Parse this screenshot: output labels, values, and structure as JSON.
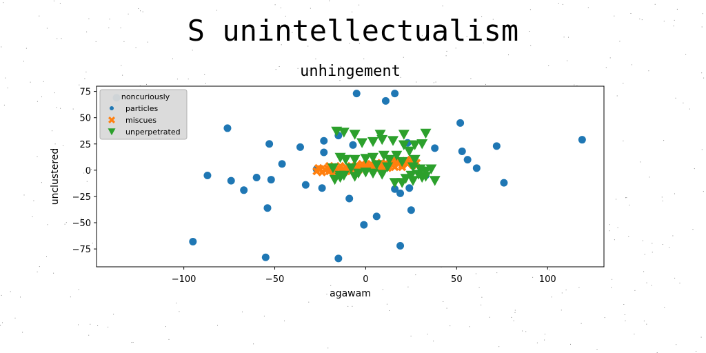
{
  "suptitle": "S unintellectualism",
  "chart_data": {
    "type": "scatter",
    "title": "unhingement",
    "xlabel": "agawam",
    "ylabel": "unclustered",
    "xlim": [
      -148,
      131
    ],
    "ylim": [
      -92,
      80
    ],
    "xticks": [
      -100,
      -50,
      0,
      50,
      100
    ],
    "xtick_labels": [
      "−100",
      "−50",
      "0",
      "50",
      "100"
    ],
    "yticks": [
      -75,
      -50,
      -25,
      0,
      25,
      50,
      75
    ],
    "ytick_labels": [
      "−75",
      "−50",
      "−25",
      "0",
      "25",
      "50",
      "75"
    ],
    "grid": false,
    "legend": {
      "title": "noncuriously",
      "placement": "top-left"
    },
    "series": [
      {
        "name": "particles",
        "marker": "circle",
        "color": "#1f77b4",
        "points": [
          [
            -137,
            69
          ],
          [
            -5,
            73
          ],
          [
            16,
            73
          ],
          [
            11,
            66
          ],
          [
            -76,
            40
          ],
          [
            52,
            45
          ],
          [
            119,
            29
          ],
          [
            -53,
            25
          ],
          [
            -36,
            22
          ],
          [
            -23,
            28
          ],
          [
            -23,
            17
          ],
          [
            -15,
            33
          ],
          [
            -7,
            24
          ],
          [
            23,
            26
          ],
          [
            38,
            21
          ],
          [
            53,
            18
          ],
          [
            56,
            10
          ],
          [
            72,
            23
          ],
          [
            61,
            2
          ],
          [
            -46,
            6
          ],
          [
            -87,
            -5
          ],
          [
            -74,
            -10
          ],
          [
            -60,
            -7
          ],
          [
            -52,
            -9
          ],
          [
            -67,
            -19
          ],
          [
            -33,
            -14
          ],
          [
            -24,
            -17
          ],
          [
            -27,
            1
          ],
          [
            -9,
            -27
          ],
          [
            16,
            -18
          ],
          [
            19,
            -22
          ],
          [
            24,
            -17
          ],
          [
            33,
            -5
          ],
          [
            76,
            -12
          ],
          [
            -54,
            -36
          ],
          [
            25,
            -38
          ],
          [
            6,
            -44
          ],
          [
            -1,
            -52
          ],
          [
            -95,
            -68
          ],
          [
            19,
            -72
          ],
          [
            -55,
            -83
          ],
          [
            -15,
            -84
          ]
        ]
      },
      {
        "name": "miscues",
        "marker": "x",
        "color": "#ff7f0e",
        "points": [
          [
            -27,
            -1
          ],
          [
            -25,
            1
          ],
          [
            -24,
            -2
          ],
          [
            -22,
            0
          ],
          [
            -21,
            2
          ],
          [
            -20,
            -1
          ],
          [
            -19,
            1
          ],
          [
            -18,
            3
          ],
          [
            -17,
            -2
          ],
          [
            -16,
            0
          ],
          [
            -15,
            2
          ],
          [
            -14,
            4
          ],
          [
            -13,
            -1
          ],
          [
            -12,
            1
          ],
          [
            -11,
            3
          ],
          [
            -10,
            0
          ],
          [
            -9,
            2
          ],
          [
            -8,
            4
          ],
          [
            -7,
            1
          ],
          [
            -6,
            3
          ],
          [
            -5,
            5
          ],
          [
            -4,
            2
          ],
          [
            -3,
            4
          ],
          [
            -2,
            6
          ],
          [
            -1,
            3
          ],
          [
            0,
            5
          ],
          [
            1,
            2
          ],
          [
            2,
            4
          ],
          [
            3,
            6
          ],
          [
            4,
            3
          ],
          [
            5,
            5
          ],
          [
            6,
            7
          ],
          [
            7,
            4
          ],
          [
            8,
            6
          ],
          [
            9,
            3
          ],
          [
            10,
            5
          ],
          [
            11,
            7
          ],
          [
            12,
            4
          ],
          [
            13,
            6
          ],
          [
            14,
            8
          ],
          [
            15,
            5
          ],
          [
            16,
            7
          ],
          [
            17,
            9
          ],
          [
            18,
            6
          ],
          [
            19,
            8
          ],
          [
            20,
            5
          ],
          [
            21,
            7
          ],
          [
            22,
            9
          ],
          [
            23,
            6
          ],
          [
            24,
            8
          ],
          [
            25,
            10
          ],
          [
            -20,
            4
          ],
          [
            -12,
            -2
          ],
          [
            -4,
            0
          ],
          [
            4,
            1
          ],
          [
            12,
            2
          ],
          [
            20,
            3
          ],
          [
            26,
            5
          ],
          [
            28,
            7
          ],
          [
            -26,
            2
          ],
          [
            -18,
            -1
          ],
          [
            -8,
            -1
          ],
          [
            8,
            2
          ],
          [
            16,
            3
          ]
        ]
      },
      {
        "name": "unperpetrated",
        "marker": "triangle-down",
        "color": "#2ca02c",
        "points": [
          [
            -16,
            37
          ],
          [
            -12,
            36
          ],
          [
            -6,
            34
          ],
          [
            8,
            34
          ],
          [
            21,
            34
          ],
          [
            33,
            35
          ],
          [
            -2,
            26
          ],
          [
            4,
            27
          ],
          [
            9,
            29
          ],
          [
            15,
            28
          ],
          [
            21,
            24
          ],
          [
            27,
            24
          ],
          [
            31,
            25
          ],
          [
            24,
            18
          ],
          [
            10,
            14
          ],
          [
            17,
            14
          ],
          [
            -14,
            12
          ],
          [
            -11,
            10
          ],
          [
            -6,
            10
          ],
          [
            0,
            11
          ],
          [
            4,
            12
          ],
          [
            13,
            10
          ],
          [
            20,
            8
          ],
          [
            27,
            10
          ],
          [
            -18,
            2
          ],
          [
            -8,
            2
          ],
          [
            0,
            -2
          ],
          [
            6,
            5
          ],
          [
            12,
            3
          ],
          [
            26,
            3
          ],
          [
            30,
            1
          ],
          [
            33,
            -1
          ],
          [
            36,
            1
          ],
          [
            -17,
            -9
          ],
          [
            -14,
            -5
          ],
          [
            -12,
            -5
          ],
          [
            -4,
            -3
          ],
          [
            4,
            -3
          ],
          [
            9,
            -4
          ],
          [
            22,
            -8
          ],
          [
            25,
            -5
          ],
          [
            29,
            -4
          ],
          [
            38,
            -10
          ],
          [
            -14,
            -7
          ],
          [
            26,
            -10
          ],
          [
            20,
            -12
          ],
          [
            16,
            -12
          ],
          [
            31,
            -7
          ],
          [
            33,
            -6
          ],
          [
            -6,
            -6
          ]
        ]
      }
    ]
  }
}
